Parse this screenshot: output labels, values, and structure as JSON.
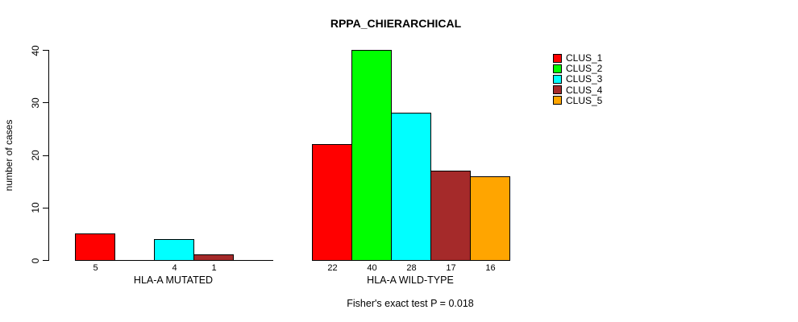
{
  "title": "RPPA_CHIERARCHICAL",
  "footer": "Fisher's exact test P = 0.018",
  "chart_data": {
    "type": "bar",
    "title": "RPPA_CHIERARCHICAL",
    "xlabel": "",
    "ylabel": "number of cases",
    "ylim": [
      0,
      40
    ],
    "yticks": [
      "0",
      "10",
      "20",
      "30",
      "40"
    ],
    "grid": false,
    "legend_position": "right",
    "categories": [
      "HLA-A MUTATED",
      "HLA-A WILD-TYPE"
    ],
    "series": [
      {
        "name": "CLUS_1",
        "color": "#ff0000",
        "values": [
          5,
          22
        ]
      },
      {
        "name": "CLUS_2",
        "color": "#00ff00",
        "values": [
          0,
          40
        ]
      },
      {
        "name": "CLUS_3",
        "color": "#00ffff",
        "values": [
          4,
          28
        ]
      },
      {
        "name": "CLUS_4",
        "color": "#a52a2a",
        "values": [
          1,
          17
        ]
      },
      {
        "name": "CLUS_5",
        "color": "#ffa500",
        "values": [
          0,
          16
        ]
      }
    ],
    "bar_value_labels": {
      "HLA-A MUTATED": [
        "5",
        null,
        "4",
        "1",
        null
      ],
      "HLA-A WILD-TYPE": [
        "22",
        "40",
        "28",
        "17",
        "16"
      ]
    },
    "annotation": "Fisher's exact test P = 0.018"
  }
}
